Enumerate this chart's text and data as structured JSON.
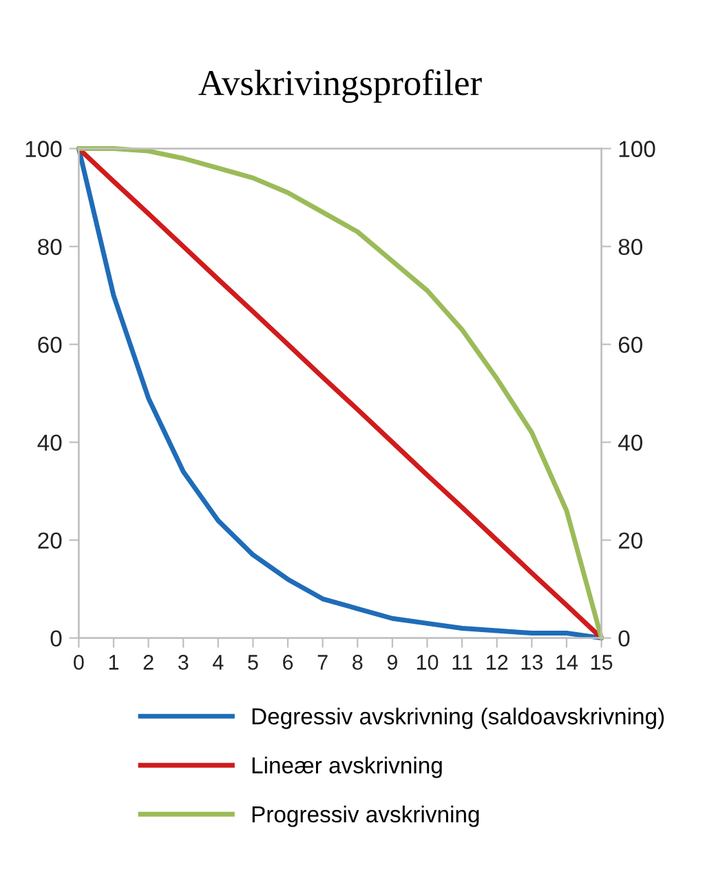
{
  "chart_data": {
    "type": "line",
    "title": "Avskrivingsprofiler",
    "x": [
      0,
      1,
      2,
      3,
      4,
      5,
      6,
      7,
      8,
      9,
      10,
      11,
      12,
      13,
      14,
      15
    ],
    "series": [
      {
        "name": "Degressiv avskrivning (saldoavskrivning)",
        "color": "#1f6cb8",
        "values": [
          100,
          70,
          49,
          34,
          24,
          17,
          12,
          8,
          6,
          4,
          3,
          2,
          1.5,
          1,
          1,
          0
        ]
      },
      {
        "name": "Lineær avskrivning",
        "color": "#d01c1c",
        "values": [
          100,
          93.3,
          86.7,
          80,
          73.3,
          66.7,
          60,
          53.3,
          46.7,
          40,
          33.3,
          26.7,
          20,
          13.3,
          6.7,
          0
        ]
      },
      {
        "name": "Progressiv avskrivning",
        "color": "#9bbb59",
        "values": [
          100,
          100,
          99.5,
          98,
          96,
          94,
          91,
          87,
          83,
          77,
          71,
          63,
          53,
          42,
          26,
          0
        ]
      }
    ],
    "xlim": [
      0,
      15
    ],
    "xticks": [
      0,
      1,
      2,
      3,
      4,
      5,
      6,
      7,
      8,
      9,
      10,
      11,
      12,
      13,
      14,
      15
    ],
    "ylim": [
      0,
      100
    ],
    "yticks": [
      0,
      20,
      40,
      60,
      80,
      100
    ],
    "y2lim": [
      0,
      100
    ],
    "y2ticks": [
      0,
      20,
      40,
      60,
      80,
      100
    ],
    "grid": false,
    "legend": "bottom",
    "marker": "none",
    "line_style": "solid"
  }
}
